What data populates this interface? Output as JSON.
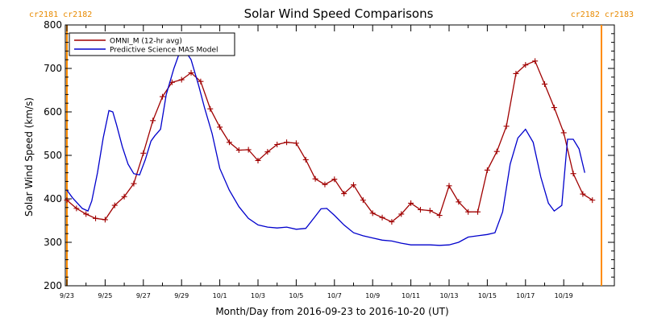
{
  "chart_data": {
    "type": "line",
    "title": "Solar Wind Speed Comparisons",
    "xlabel": "Month/Day from 2016-09-23 to 2016-10-20 (UT)",
    "ylabel": "Solar Wind Speed (km/s)",
    "ylim": [
      200,
      800
    ],
    "xlim_days": [
      0,
      28
    ],
    "y_ticks": [
      200,
      300,
      400,
      500,
      600,
      700,
      800
    ],
    "x_tick_labels": [
      "9/23",
      "9/25",
      "9/27",
      "9/29",
      "10/1",
      "10/3",
      "10/5",
      "10/7",
      "10/9",
      "10/11",
      "10/13",
      "10/15",
      "10/17",
      "10/19"
    ],
    "rotation_labels": {
      "left": "cr2181 cr2182",
      "right": "cr2182 cr2183"
    },
    "legend_position": "top-left",
    "grid": false,
    "series": [
      {
        "name": "OMNI_M (12-hr avg)",
        "color": "#a00000",
        "marker": "plus",
        "x": [
          0.0,
          0.5,
          1.0,
          1.5,
          2.0,
          2.5,
          3.0,
          3.5,
          4.0,
          4.5,
          5.0,
          5.5,
          6.0,
          6.5,
          7.0,
          7.5,
          8.0,
          8.5,
          9.0,
          9.5,
          10.0,
          10.5,
          11.0,
          11.5,
          12.0,
          12.5,
          13.0,
          13.5,
          14.0,
          14.5,
          15.0,
          15.5,
          16.0,
          16.5,
          17.0,
          17.5,
          18.0,
          18.5,
          19.0,
          19.5,
          20.0,
          20.5,
          21.0,
          21.5,
          22.0,
          22.5,
          23.0,
          23.5,
          24.0,
          24.5,
          25.0,
          25.5,
          26.0,
          26.5,
          27.0,
          27.5
        ],
        "y": [
          397,
          378,
          365,
          355,
          352,
          385,
          405,
          435,
          505,
          580,
          635,
          668,
          674,
          690,
          670,
          607,
          565,
          530,
          512,
          513,
          488,
          508,
          525,
          530,
          528,
          490,
          446,
          433,
          445,
          412,
          432,
          397,
          367,
          357,
          347,
          365,
          390,
          375,
          373,
          362,
          430,
          393,
          370,
          370,
          466,
          509,
          567,
          688,
          708,
          717,
          664,
          610,
          552,
          458,
          411,
          397
        ]
      },
      {
        "name": "Predictive Science MAS Model",
        "color": "#0000cc",
        "marker": "none",
        "x": [
          0.0,
          0.3,
          0.8,
          1.1,
          1.3,
          1.6,
          1.9,
          2.2,
          2.4,
          2.6,
          2.9,
          3.2,
          3.5,
          3.8,
          4.1,
          4.4,
          4.6,
          4.9,
          5.2,
          5.6,
          5.9,
          6.2,
          6.5,
          6.9,
          7.2,
          7.6,
          8.0,
          8.5,
          9.0,
          9.5,
          10.0,
          10.5,
          11.0,
          11.5,
          12.0,
          12.5,
          13.0,
          13.3,
          13.6,
          14.0,
          14.5,
          15.0,
          15.5,
          16.0,
          16.5,
          17.0,
          17.5,
          18.0,
          18.5,
          19.0,
          19.5,
          20.0,
          20.5,
          21.0,
          21.5,
          22.0,
          22.4,
          22.8,
          23.2,
          23.6,
          24.0,
          24.4,
          24.8,
          25.2,
          25.5,
          25.9,
          26.2,
          26.5,
          26.8,
          27.1
        ],
        "y": [
          420,
          402,
          378,
          372,
          395,
          460,
          540,
          603,
          600,
          570,
          520,
          480,
          458,
          455,
          490,
          533,
          545,
          560,
          640,
          700,
          737,
          740,
          720,
          660,
          610,
          550,
          470,
          420,
          382,
          355,
          340,
          335,
          333,
          335,
          330,
          332,
          360,
          377,
          378,
          362,
          340,
          322,
          315,
          310,
          305,
          303,
          298,
          294,
          294,
          294,
          293,
          294,
          300,
          312,
          315,
          318,
          322,
          370,
          480,
          540,
          560,
          530,
          450,
          390,
          372,
          385,
          537,
          537,
          515,
          460
        ]
      }
    ]
  }
}
